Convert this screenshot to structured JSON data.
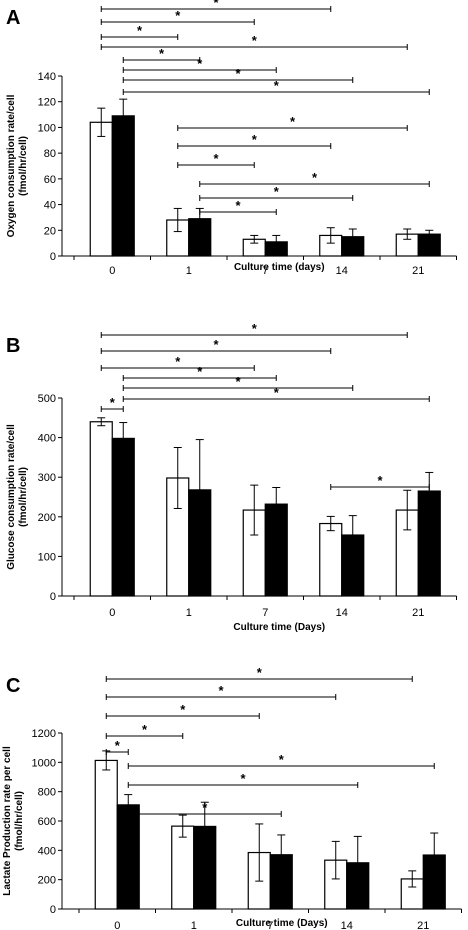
{
  "chart_data": [
    {
      "panel_label": "A",
      "type": "bar",
      "categories": [
        "0",
        "1",
        "7",
        "14",
        "21"
      ],
      "xlabel": "Culture time (days)",
      "ylabel_lines": [
        "Oxygen consumption rate/cell",
        "(fmol/hr/cell)"
      ],
      "ylim": [
        0,
        140
      ],
      "yticks": [
        0,
        20,
        40,
        60,
        80,
        100,
        120,
        140
      ],
      "series": [
        {
          "fill": "#ffffff",
          "values": [
            104,
            28,
            13,
            16,
            17
          ],
          "errors": [
            11,
            9,
            3,
            6,
            4
          ]
        },
        {
          "fill": "#000000",
          "values": [
            109,
            29,
            11,
            15,
            17
          ],
          "errors": [
            13,
            8,
            5,
            6,
            3
          ]
        }
      ],
      "significance": [
        {
          "from": [
            0,
            0
          ],
          "to": [
            3,
            0
          ],
          "label": "*"
        },
        {
          "from": [
            0,
            0
          ],
          "to": [
            2,
            0
          ],
          "label": "*"
        },
        {
          "from": [
            0,
            0
          ],
          "to": [
            1,
            0
          ],
          "label": "*"
        },
        {
          "from": [
            0,
            0
          ],
          "to": [
            4,
            0
          ],
          "label": "*"
        },
        {
          "from": [
            0,
            1
          ],
          "to": [
            1,
            1
          ],
          "label": "*"
        },
        {
          "from": [
            0,
            1
          ],
          "to": [
            2,
            1
          ],
          "label": "*"
        },
        {
          "from": [
            0,
            1
          ],
          "to": [
            3,
            1
          ],
          "label": "*"
        },
        {
          "from": [
            0,
            1
          ],
          "to": [
            4,
            1
          ],
          "label": "*"
        },
        {
          "from": [
            1,
            0
          ],
          "to": [
            4,
            0
          ],
          "label": "*"
        },
        {
          "from": [
            1,
            0
          ],
          "to": [
            3,
            0
          ],
          "label": "*"
        },
        {
          "from": [
            1,
            0
          ],
          "to": [
            2,
            0
          ],
          "label": "*"
        },
        {
          "from": [
            1,
            1
          ],
          "to": [
            4,
            1
          ],
          "label": "*"
        },
        {
          "from": [
            1,
            1
          ],
          "to": [
            3,
            1
          ],
          "label": "*"
        },
        {
          "from": [
            1,
            1
          ],
          "to": [
            2,
            1
          ],
          "label": "*"
        }
      ]
    },
    {
      "panel_label": "B",
      "type": "bar",
      "categories": [
        "0",
        "1",
        "7",
        "14",
        "21"
      ],
      "xlabel": "Culture time (Days)",
      "ylabel_lines": [
        "Glucose consumption rate/cell",
        "(fmol/hr/cell)"
      ],
      "ylim": [
        0,
        500
      ],
      "yticks": [
        0,
        100,
        200,
        300,
        400,
        500
      ],
      "series": [
        {
          "fill": "#ffffff",
          "values": [
            440,
            298,
            217,
            183,
            217
          ],
          "errors": [
            10,
            77,
            63,
            18,
            50
          ]
        },
        {
          "fill": "#000000",
          "values": [
            398,
            268,
            232,
            154,
            265
          ],
          "errors": [
            40,
            127,
            42,
            49,
            47
          ]
        }
      ],
      "significance": [
        {
          "from": [
            0,
            0
          ],
          "to": [
            4,
            0
          ],
          "label": "*"
        },
        {
          "from": [
            0,
            0
          ],
          "to": [
            3,
            0
          ],
          "label": "*"
        },
        {
          "from": [
            0,
            0
          ],
          "to": [
            2,
            0
          ],
          "label": "*"
        },
        {
          "from": [
            0,
            1
          ],
          "to": [
            2,
            1
          ],
          "label": "*"
        },
        {
          "from": [
            0,
            1
          ],
          "to": [
            3,
            1
          ],
          "label": "*"
        },
        {
          "from": [
            0,
            1
          ],
          "to": [
            4,
            1
          ],
          "label": "*"
        },
        {
          "from": [
            0,
            0
          ],
          "to": [
            0,
            1
          ],
          "label": "*"
        },
        {
          "from": [
            3,
            0
          ],
          "to": [
            4,
            1
          ],
          "label": "*"
        }
      ]
    },
    {
      "panel_label": "C",
      "type": "bar",
      "categories": [
        "0",
        "1",
        "7",
        "14",
        "21"
      ],
      "xlabel": "Culture time (Days)",
      "ylabel_lines": [
        "Lactate Production rate per cell",
        "(fmol/hr/cell)"
      ],
      "ylim": [
        0,
        1200
      ],
      "yticks": [
        0,
        200,
        400,
        600,
        800,
        1000,
        1200
      ],
      "series": [
        {
          "fill": "#ffffff",
          "values": [
            1013,
            565,
            385,
            333,
            205
          ],
          "errors": [
            65,
            75,
            195,
            128,
            55
          ]
        },
        {
          "fill": "#000000",
          "values": [
            710,
            563,
            370,
            315,
            368
          ],
          "errors": [
            70,
            165,
            135,
            180,
            150
          ]
        }
      ],
      "significance": [
        {
          "from": [
            0,
            0
          ],
          "to": [
            4,
            0
          ],
          "label": "*"
        },
        {
          "from": [
            0,
            0
          ],
          "to": [
            3,
            0
          ],
          "label": "*"
        },
        {
          "from": [
            0,
            0
          ],
          "to": [
            2,
            0
          ],
          "label": "*"
        },
        {
          "from": [
            0,
            0
          ],
          "to": [
            1,
            0
          ],
          "label": "*"
        },
        {
          "from": [
            0,
            0
          ],
          "to": [
            0,
            1
          ],
          "label": "*"
        },
        {
          "from": [
            0,
            1
          ],
          "to": [
            4,
            1
          ],
          "label": "*"
        },
        {
          "from": [
            0,
            1
          ],
          "to": [
            3,
            1
          ],
          "label": "*"
        },
        {
          "from": [
            0,
            1
          ],
          "to": [
            2,
            1
          ],
          "label": "*"
        }
      ]
    }
  ]
}
